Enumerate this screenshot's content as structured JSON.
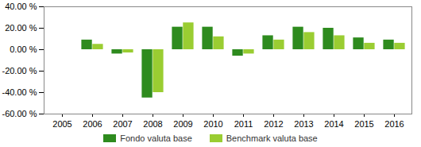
{
  "chart_data": {
    "type": "bar",
    "categories": [
      "2005",
      "2006",
      "2007",
      "2008",
      "2009",
      "2010",
      "2011",
      "2012",
      "2013",
      "2014",
      "2015",
      "2016"
    ],
    "series": [
      {
        "name": "Fondo valuta base",
        "color": "#2e8b1e",
        "values": [
          null,
          9,
          -4,
          -45,
          21,
          21,
          -6,
          13,
          21,
          20,
          11,
          9
        ]
      },
      {
        "name": "Benchmark valuta base",
        "color": "#9acd32",
        "values": [
          null,
          5,
          -3,
          -40,
          25,
          12,
          -4,
          9,
          16,
          13,
          6,
          6
        ]
      }
    ],
    "ylim": [
      -60,
      40
    ],
    "yticks": [
      {
        "value": -60,
        "label": "-60.00 %"
      },
      {
        "value": -40,
        "label": "-40.00 %"
      },
      {
        "value": -20,
        "label": "-20.00 %"
      },
      {
        "value": 0,
        "label": "0.00 %"
      },
      {
        "value": 20,
        "label": "20.00 %"
      },
      {
        "value": 40,
        "label": "40.00 %"
      }
    ],
    "grid": false,
    "legend": "bottom"
  }
}
